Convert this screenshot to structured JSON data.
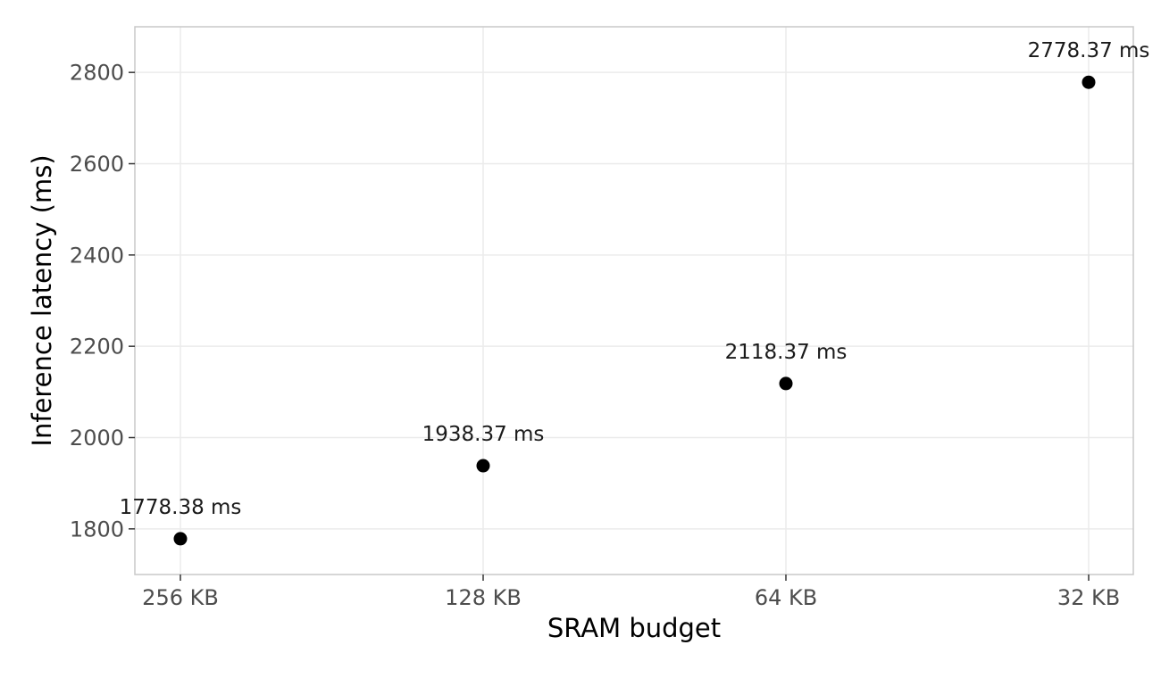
{
  "chart_data": {
    "type": "scatter",
    "title": "",
    "xlabel": "SRAM budget",
    "ylabel": "Inference latency (ms)",
    "categories": [
      "256 KB",
      "128 KB",
      "64 KB",
      "32 KB"
    ],
    "series": [
      {
        "values": [
          1778.38,
          1938.37,
          2118.37,
          2778.37
        ],
        "labels": [
          "1778.38 ms",
          "1938.37 ms",
          "2118.37 ms",
          "2778.37 ms"
        ]
      }
    ],
    "ylim": [
      1700,
      2900
    ],
    "yticks": [
      1800,
      2000,
      2200,
      2400,
      2600,
      2800
    ],
    "grid": true,
    "legend": "none"
  },
  "colors": {
    "point": "#000000",
    "grid": "#ebebeb",
    "panel_border": "#c8c8c8",
    "tick_mark": "#333333"
  }
}
